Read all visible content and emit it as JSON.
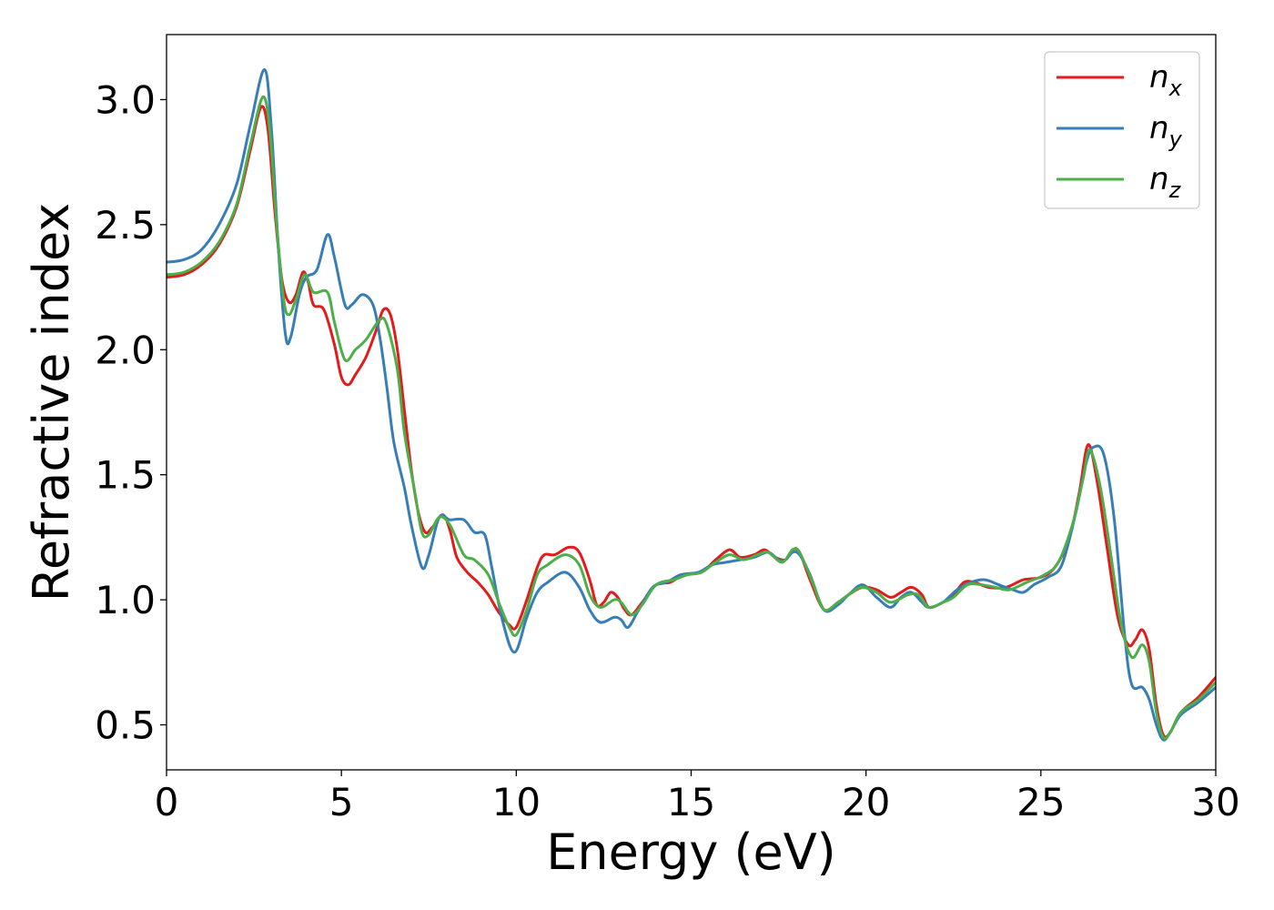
{
  "chart_data": {
    "type": "line",
    "title": "",
    "xlabel": "Energy (eV)",
    "ylabel": "Refractive index",
    "xlim": [
      0,
      30
    ],
    "ylim": [
      0.32,
      3.26
    ],
    "xticks": [
      0,
      5,
      10,
      15,
      20,
      25,
      30
    ],
    "xtick_labels": [
      "0",
      "5",
      "10",
      "15",
      "20",
      "25",
      "30"
    ],
    "yticks": [
      0.5,
      1.0,
      1.5,
      2.0,
      2.5,
      3.0
    ],
    "ytick_labels": [
      "0.5",
      "1.0",
      "1.5",
      "2.0",
      "2.5",
      "3.0"
    ],
    "grid": false,
    "legend_position": "top-right",
    "series": [
      {
        "name": "n_x",
        "label_base": "n",
        "label_sub": "x",
        "color": "#e41a1c",
        "points": [
          [
            0,
            2.29
          ],
          [
            0.5,
            2.3
          ],
          [
            1.0,
            2.34
          ],
          [
            1.5,
            2.42
          ],
          [
            2.0,
            2.57
          ],
          [
            2.4,
            2.8
          ],
          [
            2.7,
            2.97
          ],
          [
            2.9,
            2.88
          ],
          [
            3.1,
            2.55
          ],
          [
            3.3,
            2.28
          ],
          [
            3.5,
            2.19
          ],
          [
            3.7,
            2.22
          ],
          [
            3.9,
            2.31
          ],
          [
            4.05,
            2.27
          ],
          [
            4.2,
            2.18
          ],
          [
            4.5,
            2.16
          ],
          [
            4.8,
            2.02
          ],
          [
            5.0,
            1.89
          ],
          [
            5.2,
            1.86
          ],
          [
            5.4,
            1.9
          ],
          [
            5.7,
            1.97
          ],
          [
            6.0,
            2.08
          ],
          [
            6.2,
            2.16
          ],
          [
            6.4,
            2.14
          ],
          [
            6.6,
            2.0
          ],
          [
            6.8,
            1.76
          ],
          [
            7.0,
            1.52
          ],
          [
            7.2,
            1.35
          ],
          [
            7.4,
            1.27
          ],
          [
            7.6,
            1.29
          ],
          [
            7.9,
            1.34
          ],
          [
            8.1,
            1.28
          ],
          [
            8.3,
            1.17
          ],
          [
            8.6,
            1.11
          ],
          [
            8.9,
            1.07
          ],
          [
            9.2,
            1.02
          ],
          [
            9.5,
            0.95
          ],
          [
            9.8,
            0.9
          ],
          [
            10.0,
            0.89
          ],
          [
            10.3,
            1.0
          ],
          [
            10.6,
            1.13
          ],
          [
            10.8,
            1.18
          ],
          [
            11.1,
            1.18
          ],
          [
            11.5,
            1.21
          ],
          [
            11.8,
            1.19
          ],
          [
            12.1,
            1.08
          ],
          [
            12.3,
            0.98
          ],
          [
            12.5,
            0.99
          ],
          [
            12.7,
            1.03
          ],
          [
            12.9,
            1.01
          ],
          [
            13.1,
            0.96
          ],
          [
            13.3,
            0.94
          ],
          [
            13.6,
            0.99
          ],
          [
            14.0,
            1.06
          ],
          [
            14.4,
            1.07
          ],
          [
            14.8,
            1.1
          ],
          [
            15.3,
            1.11
          ],
          [
            15.7,
            1.16
          ],
          [
            16.1,
            1.2
          ],
          [
            16.4,
            1.17
          ],
          [
            16.8,
            1.18
          ],
          [
            17.1,
            1.2
          ],
          [
            17.4,
            1.17
          ],
          [
            17.7,
            1.16
          ],
          [
            17.9,
            1.2
          ],
          [
            18.1,
            1.19
          ],
          [
            18.4,
            1.08
          ],
          [
            18.8,
            0.96
          ],
          [
            19.2,
            0.99
          ],
          [
            19.5,
            1.02
          ],
          [
            19.9,
            1.05
          ],
          [
            20.3,
            1.04
          ],
          [
            20.7,
            1.01
          ],
          [
            21.0,
            1.03
          ],
          [
            21.3,
            1.05
          ],
          [
            21.6,
            1.02
          ],
          [
            21.8,
            0.97
          ],
          [
            22.2,
            0.99
          ],
          [
            22.5,
            1.02
          ],
          [
            22.8,
            1.07
          ],
          [
            23.1,
            1.07
          ],
          [
            23.5,
            1.05
          ],
          [
            24.0,
            1.05
          ],
          [
            24.5,
            1.08
          ],
          [
            25.0,
            1.09
          ],
          [
            25.4,
            1.13
          ],
          [
            25.8,
            1.24
          ],
          [
            26.1,
            1.43
          ],
          [
            26.35,
            1.62
          ],
          [
            26.6,
            1.48
          ],
          [
            26.9,
            1.2
          ],
          [
            27.2,
            0.93
          ],
          [
            27.5,
            0.82
          ],
          [
            27.7,
            0.84
          ],
          [
            27.9,
            0.88
          ],
          [
            28.1,
            0.8
          ],
          [
            28.3,
            0.58
          ],
          [
            28.5,
            0.46
          ],
          [
            28.7,
            0.47
          ],
          [
            29.0,
            0.55
          ],
          [
            29.5,
            0.61
          ],
          [
            30.0,
            0.69
          ]
        ]
      },
      {
        "name": "n_y",
        "label_base": "n",
        "label_sub": "y",
        "color": "#377eb8",
        "points": [
          [
            0,
            2.35
          ],
          [
            0.5,
            2.36
          ],
          [
            1.0,
            2.4
          ],
          [
            1.5,
            2.5
          ],
          [
            2.0,
            2.66
          ],
          [
            2.4,
            2.9
          ],
          [
            2.8,
            3.12
          ],
          [
            3.0,
            2.88
          ],
          [
            3.2,
            2.4
          ],
          [
            3.4,
            2.06
          ],
          [
            3.55,
            2.05
          ],
          [
            3.8,
            2.22
          ],
          [
            4.0,
            2.29
          ],
          [
            4.3,
            2.32
          ],
          [
            4.6,
            2.46
          ],
          [
            4.8,
            2.37
          ],
          [
            5.1,
            2.18
          ],
          [
            5.3,
            2.18
          ],
          [
            5.6,
            2.22
          ],
          [
            5.9,
            2.18
          ],
          [
            6.1,
            2.05
          ],
          [
            6.3,
            1.85
          ],
          [
            6.5,
            1.63
          ],
          [
            6.8,
            1.45
          ],
          [
            7.0,
            1.3
          ],
          [
            7.3,
            1.13
          ],
          [
            7.5,
            1.18
          ],
          [
            7.8,
            1.33
          ],
          [
            8.1,
            1.32
          ],
          [
            8.5,
            1.32
          ],
          [
            8.8,
            1.27
          ],
          [
            9.1,
            1.26
          ],
          [
            9.3,
            1.13
          ],
          [
            9.6,
            0.92
          ],
          [
            9.95,
            0.79
          ],
          [
            10.3,
            0.93
          ],
          [
            10.6,
            1.03
          ],
          [
            10.9,
            1.07
          ],
          [
            11.4,
            1.11
          ],
          [
            11.8,
            1.05
          ],
          [
            12.1,
            0.96
          ],
          [
            12.4,
            0.91
          ],
          [
            12.8,
            0.93
          ],
          [
            13.0,
            0.92
          ],
          [
            13.2,
            0.89
          ],
          [
            13.5,
            0.96
          ],
          [
            13.9,
            1.05
          ],
          [
            14.3,
            1.07
          ],
          [
            14.7,
            1.1
          ],
          [
            15.2,
            1.11
          ],
          [
            15.6,
            1.14
          ],
          [
            16.0,
            1.15
          ],
          [
            16.4,
            1.16
          ],
          [
            16.8,
            1.17
          ],
          [
            17.2,
            1.19
          ],
          [
            17.5,
            1.16
          ],
          [
            17.7,
            1.16
          ],
          [
            17.9,
            1.19
          ],
          [
            18.1,
            1.18
          ],
          [
            18.4,
            1.1
          ],
          [
            18.8,
            0.96
          ],
          [
            19.2,
            0.98
          ],
          [
            19.5,
            1.02
          ],
          [
            19.9,
            1.06
          ],
          [
            20.3,
            1.01
          ],
          [
            20.7,
            0.97
          ],
          [
            21.0,
            1.01
          ],
          [
            21.3,
            1.03
          ],
          [
            21.6,
            0.99
          ],
          [
            21.8,
            0.97
          ],
          [
            22.2,
            0.99
          ],
          [
            22.6,
            1.04
          ],
          [
            23.0,
            1.07
          ],
          [
            23.4,
            1.08
          ],
          [
            23.8,
            1.06
          ],
          [
            24.2,
            1.04
          ],
          [
            24.5,
            1.03
          ],
          [
            24.8,
            1.06
          ],
          [
            25.2,
            1.09
          ],
          [
            25.6,
            1.14
          ],
          [
            26.0,
            1.35
          ],
          [
            26.3,
            1.55
          ],
          [
            26.5,
            1.61
          ],
          [
            26.8,
            1.58
          ],
          [
            27.1,
            1.32
          ],
          [
            27.4,
            0.85
          ],
          [
            27.6,
            0.66
          ],
          [
            27.9,
            0.65
          ],
          [
            28.1,
            0.6
          ],
          [
            28.3,
            0.5
          ],
          [
            28.5,
            0.44
          ],
          [
            28.7,
            0.47
          ],
          [
            29.0,
            0.54
          ],
          [
            29.5,
            0.59
          ],
          [
            30.0,
            0.65
          ]
        ]
      },
      {
        "name": "n_z",
        "label_base": "n",
        "label_sub": "z",
        "color": "#4daf4a",
        "points": [
          [
            0,
            2.3
          ],
          [
            0.5,
            2.31
          ],
          [
            1.0,
            2.35
          ],
          [
            1.5,
            2.43
          ],
          [
            2.0,
            2.58
          ],
          [
            2.4,
            2.82
          ],
          [
            2.75,
            3.01
          ],
          [
            2.95,
            2.88
          ],
          [
            3.15,
            2.5
          ],
          [
            3.35,
            2.2
          ],
          [
            3.5,
            2.14
          ],
          [
            3.7,
            2.2
          ],
          [
            3.95,
            2.3
          ],
          [
            4.2,
            2.23
          ],
          [
            4.6,
            2.23
          ],
          [
            4.8,
            2.11
          ],
          [
            5.1,
            1.96
          ],
          [
            5.4,
            2.0
          ],
          [
            5.7,
            2.04
          ],
          [
            6.1,
            2.12
          ],
          [
            6.3,
            2.1
          ],
          [
            6.6,
            1.92
          ],
          [
            6.8,
            1.67
          ],
          [
            7.1,
            1.43
          ],
          [
            7.3,
            1.27
          ],
          [
            7.5,
            1.26
          ],
          [
            7.8,
            1.33
          ],
          [
            8.1,
            1.3
          ],
          [
            8.5,
            1.18
          ],
          [
            8.8,
            1.16
          ],
          [
            9.2,
            1.1
          ],
          [
            9.5,
            0.99
          ],
          [
            9.8,
            0.89
          ],
          [
            10.0,
            0.86
          ],
          [
            10.3,
            0.96
          ],
          [
            10.6,
            1.1
          ],
          [
            10.9,
            1.14
          ],
          [
            11.4,
            1.18
          ],
          [
            11.8,
            1.14
          ],
          [
            12.1,
            1.02
          ],
          [
            12.4,
            0.97
          ],
          [
            12.8,
            1.0
          ],
          [
            13.0,
            0.99
          ],
          [
            13.3,
            0.94
          ],
          [
            13.6,
            0.98
          ],
          [
            14.0,
            1.06
          ],
          [
            14.5,
            1.08
          ],
          [
            14.9,
            1.1
          ],
          [
            15.3,
            1.11
          ],
          [
            15.7,
            1.15
          ],
          [
            16.1,
            1.18
          ],
          [
            16.5,
            1.16
          ],
          [
            16.9,
            1.18
          ],
          [
            17.2,
            1.19
          ],
          [
            17.6,
            1.15
          ],
          [
            17.9,
            1.2
          ],
          [
            18.1,
            1.19
          ],
          [
            18.5,
            1.06
          ],
          [
            18.8,
            0.96
          ],
          [
            19.2,
            0.99
          ],
          [
            19.6,
            1.03
          ],
          [
            19.9,
            1.05
          ],
          [
            20.3,
            1.03
          ],
          [
            20.7,
            0.99
          ],
          [
            21.2,
            1.02
          ],
          [
            21.5,
            1.02
          ],
          [
            21.8,
            0.97
          ],
          [
            22.2,
            0.99
          ],
          [
            22.5,
            1.01
          ],
          [
            22.9,
            1.06
          ],
          [
            23.3,
            1.06
          ],
          [
            23.7,
            1.05
          ],
          [
            24.1,
            1.04
          ],
          [
            24.6,
            1.07
          ],
          [
            25.1,
            1.1
          ],
          [
            25.5,
            1.15
          ],
          [
            25.9,
            1.3
          ],
          [
            26.2,
            1.48
          ],
          [
            26.4,
            1.6
          ],
          [
            26.7,
            1.45
          ],
          [
            27.0,
            1.18
          ],
          [
            27.3,
            0.9
          ],
          [
            27.6,
            0.77
          ],
          [
            27.9,
            0.82
          ],
          [
            28.1,
            0.75
          ],
          [
            28.3,
            0.55
          ],
          [
            28.5,
            0.45
          ],
          [
            28.7,
            0.47
          ],
          [
            29.0,
            0.55
          ],
          [
            29.5,
            0.6
          ],
          [
            30.0,
            0.67
          ]
        ]
      }
    ]
  }
}
